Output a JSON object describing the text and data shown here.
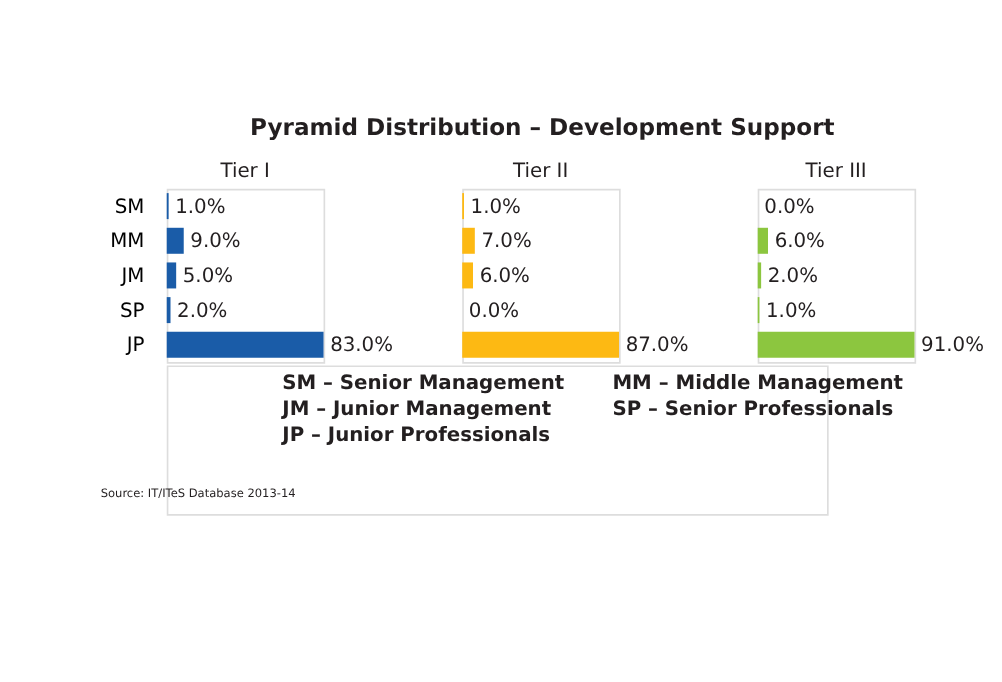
{
  "chart_data": [
    {
      "type": "other",
      "title": "Pyramid Distribution – Development Support",
      "annotations": [
        "SM – Senior Management",
        "JM – Junior Management",
        "JP – Junior Professionals",
        "MM – Middle Management",
        "SP – Senior Professionals",
        "Source: IT/ITeS Database 2013-14"
      ]
    },
    {
      "type": "bar",
      "orientation": "horizontal",
      "title": "Tier I",
      "categories": [
        "SM",
        "MM",
        "JM",
        "SP",
        "JP"
      ],
      "values": [
        1.0,
        9.0,
        5.0,
        2.0,
        83.0
      ],
      "value_labels": [
        "1.0%",
        "9.0%",
        "5.0%",
        "2.0%",
        "83.0%"
      ],
      "color": "#1a5ca8",
      "tick_labels": "y",
      "grid": false
    },
    {
      "type": "bar",
      "orientation": "horizontal",
      "title": "Tier II",
      "categories": [
        null,
        null,
        null,
        null,
        null
      ],
      "values": [
        1.0,
        7.0,
        6.0,
        0.0,
        87.0
      ],
      "value_labels": [
        "1.0%",
        "7.0%",
        "6.0%",
        "0.0%",
        "87.0%"
      ],
      "color": "#fdb913",
      "tick_labels": false,
      "grid": false
    },
    {
      "type": "bar",
      "orientation": "horizontal",
      "title": "Tier III",
      "categories": [
        null,
        null,
        null,
        null,
        null
      ],
      "values": [
        0.0,
        6.0,
        2.0,
        1.0,
        91.0
      ],
      "value_labels": [
        "0.0%",
        "6.0%",
        "2.0%",
        "1.0%",
        "91.0%"
      ],
      "color": "#8cc63f",
      "tick_labels": false,
      "grid": false
    }
  ]
}
